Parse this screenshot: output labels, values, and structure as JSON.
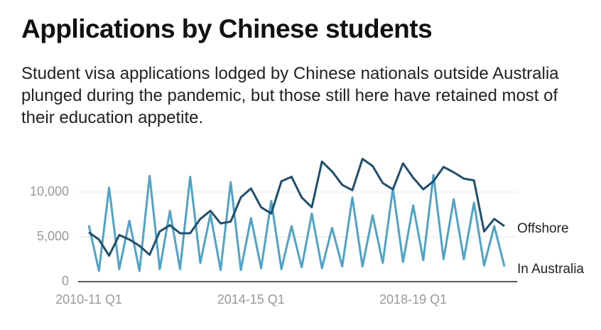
{
  "chart_data": {
    "type": "line",
    "title": "Applications by Chinese students",
    "subtitle": "Student visa applications lodged by Chinese nationals outside Australia plunged during the pandemic, but those still here have retained most of their education appetite.",
    "categories": [
      "2010-11 Q1",
      null,
      null,
      null,
      null,
      null,
      null,
      null,
      null,
      null,
      null,
      null,
      null,
      null,
      null,
      null,
      "2014-15 Q1",
      null,
      null,
      null,
      null,
      null,
      null,
      null,
      null,
      null,
      null,
      null,
      null,
      null,
      null,
      null,
      "2018-19 Q1",
      null,
      null,
      null,
      null,
      null,
      null,
      null,
      null,
      null
    ],
    "series": [
      {
        "name": "Offshore",
        "color": "#1d4f6e",
        "values": [
          5500,
          4700,
          2900,
          5200,
          4700,
          4000,
          3000,
          5600,
          6300,
          5400,
          5400,
          7000,
          7900,
          6500,
          6700,
          9400,
          10400,
          8300,
          7600,
          11200,
          11700,
          9400,
          8300,
          13400,
          12300,
          10800,
          10200,
          13700,
          12900,
          11000,
          10300,
          13200,
          11600,
          10300,
          11200,
          12800,
          12200,
          11500,
          11300,
          5600,
          7000,
          6200
        ]
      },
      {
        "name": "In Australia",
        "color": "#4ea3c6",
        "values": [
          6300,
          1200,
          10500,
          1400,
          6800,
          1200,
          11800,
          1400,
          7900,
          1400,
          11700,
          2100,
          7500,
          1300,
          11100,
          1300,
          7100,
          1500,
          9000,
          1400,
          6200,
          1600,
          7600,
          1500,
          6000,
          1700,
          9400,
          1700,
          7400,
          2100,
          10400,
          2200,
          8500,
          2400,
          11900,
          2500,
          9200,
          2500,
          8800,
          1800,
          6200,
          1700
        ]
      }
    ],
    "ylim": [
      0,
      14000
    ],
    "yticks": [
      0,
      {
        "value": 5000,
        "label": "5,000"
      },
      {
        "value": 10000,
        "label": "10,000"
      }
    ],
    "grid": true
  }
}
